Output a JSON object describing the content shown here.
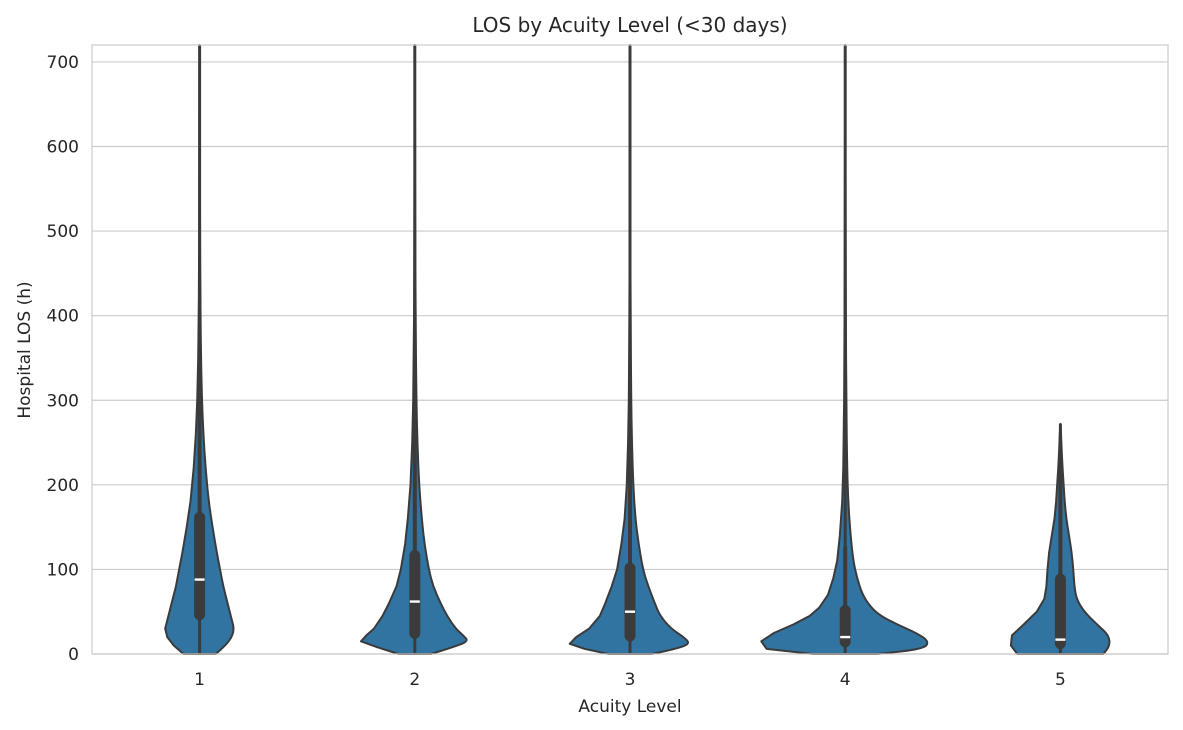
{
  "chart_data": {
    "type": "violin",
    "title": "LOS by Acuity Level (<30 days)",
    "xlabel": "Acuity Level",
    "ylabel": "Hospital LOS (h)",
    "ylim": [
      0,
      720
    ],
    "yticks": [
      0,
      100,
      200,
      300,
      400,
      500,
      600,
      700
    ],
    "categories": [
      "1",
      "2",
      "3",
      "4",
      "5"
    ],
    "grid": true,
    "colors": {
      "violin": "#3274a1",
      "edge": "#3b3b3b",
      "median": "#ffffff",
      "grid": "#cccccc"
    },
    "series": [
      {
        "category": "1",
        "min": 0,
        "q1": 40,
        "median": 88,
        "q3": 168,
        "whisker_high": 355,
        "max": 720,
        "density": [
          [
            0,
            0.15
          ],
          [
            10,
            0.24
          ],
          [
            20,
            0.3
          ],
          [
            30,
            0.32
          ],
          [
            40,
            0.3
          ],
          [
            60,
            0.26
          ],
          [
            80,
            0.22
          ],
          [
            100,
            0.19
          ],
          [
            120,
            0.16
          ],
          [
            150,
            0.12
          ],
          [
            180,
            0.085
          ],
          [
            220,
            0.055
          ],
          [
            260,
            0.035
          ],
          [
            300,
            0.022
          ],
          [
            350,
            0.013
          ],
          [
            420,
            0.007
          ],
          [
            500,
            0.004
          ],
          [
            600,
            0.002
          ],
          [
            720,
            0.001
          ]
        ]
      },
      {
        "category": "2",
        "min": 0,
        "q1": 18,
        "median": 62,
        "q3": 123,
        "whisker_high": 272,
        "max": 720,
        "density": [
          [
            0,
            0.15
          ],
          [
            8,
            0.35
          ],
          [
            15,
            0.5
          ],
          [
            22,
            0.45
          ],
          [
            30,
            0.38
          ],
          [
            45,
            0.3
          ],
          [
            60,
            0.24
          ],
          [
            80,
            0.17
          ],
          [
            100,
            0.13
          ],
          [
            130,
            0.09
          ],
          [
            160,
            0.065
          ],
          [
            200,
            0.04
          ],
          [
            250,
            0.024
          ],
          [
            300,
            0.015
          ],
          [
            400,
            0.007
          ],
          [
            500,
            0.004
          ],
          [
            600,
            0.002
          ],
          [
            720,
            0.001
          ]
        ]
      },
      {
        "category": "3",
        "min": 0,
        "q1": 15,
        "median": 50,
        "q3": 108,
        "whisker_high": 237,
        "max": 720,
        "density": [
          [
            0,
            0.2
          ],
          [
            6,
            0.42
          ],
          [
            12,
            0.56
          ],
          [
            20,
            0.5
          ],
          [
            30,
            0.38
          ],
          [
            45,
            0.28
          ],
          [
            60,
            0.23
          ],
          [
            80,
            0.17
          ],
          [
            100,
            0.12
          ],
          [
            130,
            0.08
          ],
          [
            160,
            0.05
          ],
          [
            200,
            0.03
          ],
          [
            250,
            0.018
          ],
          [
            300,
            0.011
          ],
          [
            400,
            0.006
          ],
          [
            500,
            0.003
          ],
          [
            600,
            0.002
          ],
          [
            720,
            0.001
          ]
        ]
      },
      {
        "category": "4",
        "min": 0,
        "q1": 8,
        "median": 20,
        "q3": 58,
        "whisker_high": 127,
        "max": 720,
        "density": [
          [
            0,
            0.3
          ],
          [
            6,
            0.73
          ],
          [
            15,
            0.78
          ],
          [
            25,
            0.66
          ],
          [
            35,
            0.48
          ],
          [
            45,
            0.33
          ],
          [
            55,
            0.24
          ],
          [
            70,
            0.16
          ],
          [
            90,
            0.11
          ],
          [
            110,
            0.075
          ],
          [
            140,
            0.05
          ],
          [
            180,
            0.028
          ],
          [
            220,
            0.018
          ],
          [
            300,
            0.01
          ],
          [
            400,
            0.006
          ],
          [
            500,
            0.004
          ],
          [
            600,
            0.002
          ],
          [
            720,
            0.001
          ]
        ]
      },
      {
        "category": "5",
        "min": 0,
        "q1": 6,
        "median": 17,
        "q3": 95,
        "whisker_high": 214,
        "max": 272,
        "density": [
          [
            0,
            0.4
          ],
          [
            10,
            0.46
          ],
          [
            22,
            0.45
          ],
          [
            35,
            0.34
          ],
          [
            50,
            0.22
          ],
          [
            65,
            0.15
          ],
          [
            80,
            0.13
          ],
          [
            100,
            0.12
          ],
          [
            120,
            0.105
          ],
          [
            140,
            0.08
          ],
          [
            160,
            0.055
          ],
          [
            180,
            0.04
          ],
          [
            200,
            0.03
          ],
          [
            220,
            0.02
          ],
          [
            240,
            0.012
          ],
          [
            260,
            0.006
          ],
          [
            272,
            0
          ]
        ]
      }
    ]
  }
}
